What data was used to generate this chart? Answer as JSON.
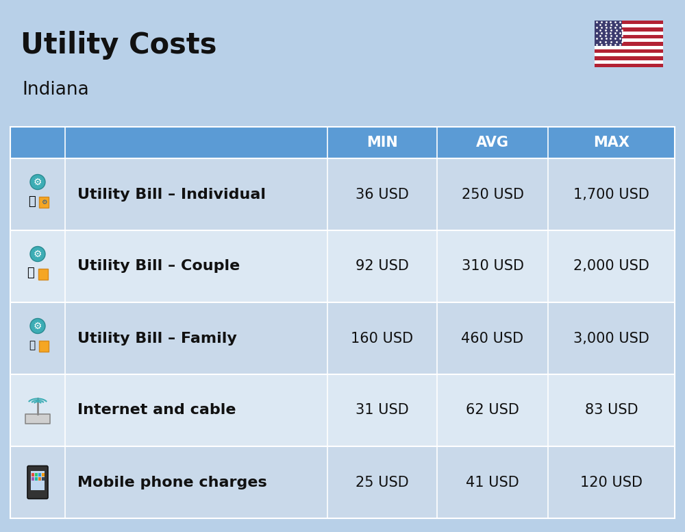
{
  "title": "Utility Costs",
  "subtitle": "Indiana",
  "background_color": "#b8d0e8",
  "header_color": "#5b9bd5",
  "header_text_color": "#ffffff",
  "row_color_1": "#c9d9ea",
  "row_color_2": "#dce8f3",
  "header_labels": [
    "MIN",
    "AVG",
    "MAX"
  ],
  "rows": [
    {
      "label": "Utility Bill – Individual",
      "min": "36 USD",
      "avg": "250 USD",
      "max": "1,700 USD"
    },
    {
      "label": "Utility Bill – Couple",
      "min": "92 USD",
      "avg": "310 USD",
      "max": "2,000 USD"
    },
    {
      "label": "Utility Bill – Family",
      "min": "160 USD",
      "avg": "460 USD",
      "max": "3,000 USD"
    },
    {
      "label": "Internet and cable",
      "min": "31 USD",
      "avg": "62 USD",
      "max": "83 USD"
    },
    {
      "label": "Mobile phone charges",
      "min": "25 USD",
      "avg": "41 USD",
      "max": "120 USD"
    }
  ],
  "title_fontsize": 30,
  "subtitle_fontsize": 19,
  "header_fontsize": 15,
  "cell_fontsize": 15,
  "label_fontsize": 16,
  "fig_width": 10.0,
  "fig_height": 7.76,
  "dpi": 100
}
